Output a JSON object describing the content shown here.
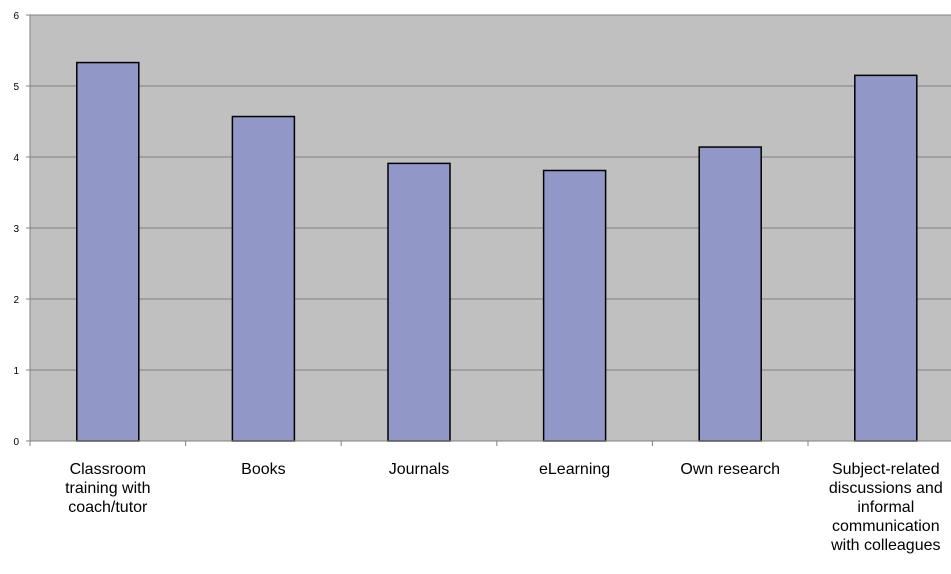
{
  "chart_data": {
    "type": "bar",
    "categories": [
      [
        "Classroom",
        "training with",
        "coach/tutor"
      ],
      [
        "Books"
      ],
      [
        "Journals"
      ],
      [
        "eLearning"
      ],
      [
        "Own research"
      ],
      [
        "Subject-related",
        "discussions and",
        "informal",
        "communication",
        "with colleagues"
      ]
    ],
    "values": [
      5.33,
      4.57,
      3.91,
      3.81,
      4.14,
      5.15
    ],
    "ylim": [
      0,
      6
    ],
    "yticks": [
      "0",
      "1",
      "2",
      "3",
      "4",
      "5",
      "6"
    ],
    "grid": true,
    "legend": "none",
    "colors": {
      "plot_bg": "#c0c0c0",
      "bar_fill": "#9198c8",
      "bar_stroke": "#000000",
      "grid": "#808080",
      "axis": "#808080",
      "text": "#000000"
    }
  }
}
